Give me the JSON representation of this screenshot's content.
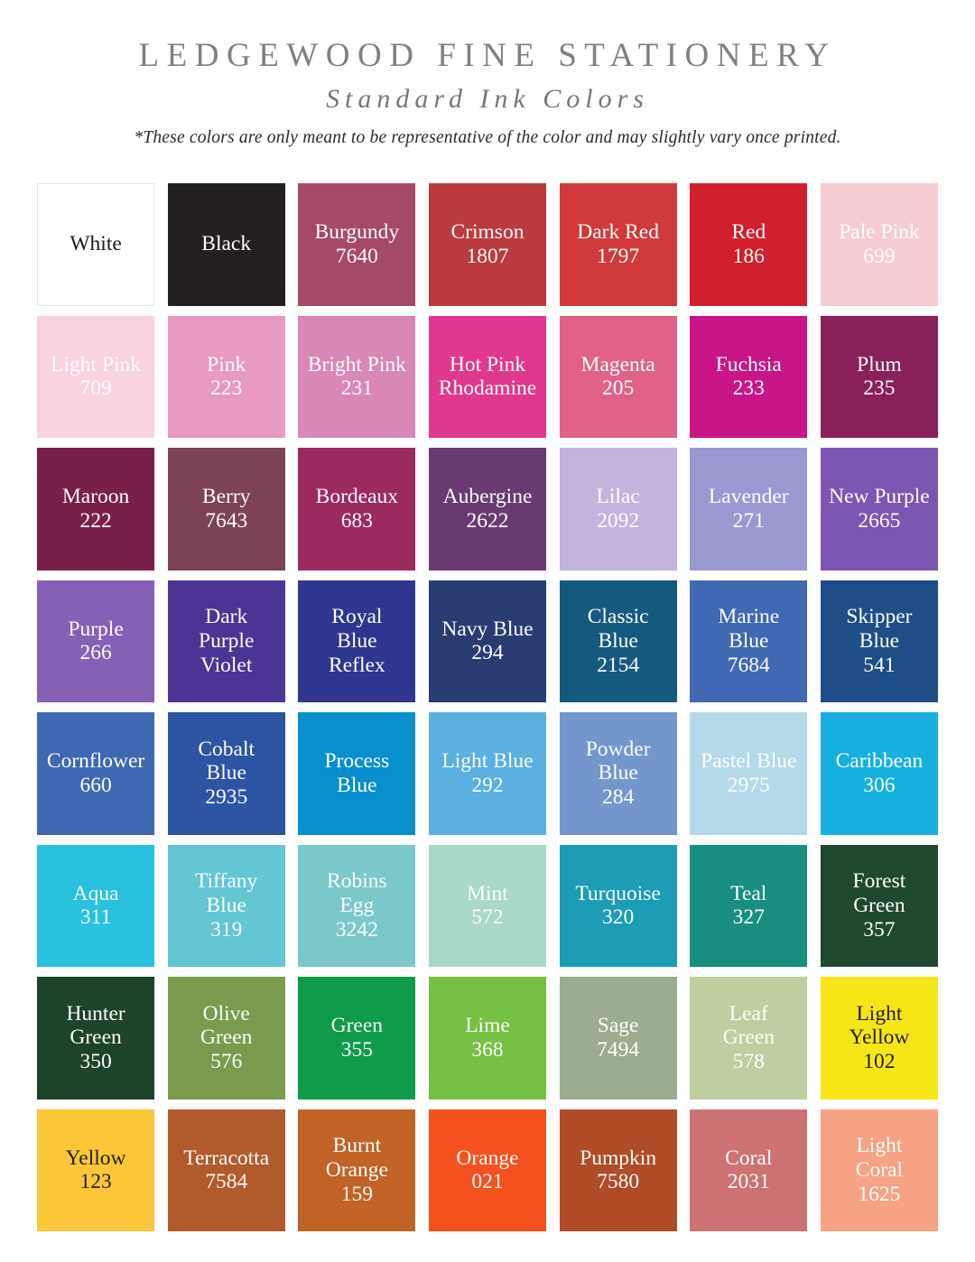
{
  "header": {
    "title": "LEDGEWOOD FINE STATIONERY",
    "subtitle": "Standard Ink Colors",
    "note": "*These colors are only meant to be representative of the color and may slightly vary once printed."
  },
  "grid": {
    "columns": 7,
    "rows": 8,
    "swatches": [
      {
        "name": "White",
        "code": "",
        "color": "#ffffff",
        "text": "#1a1a1a",
        "border": "#e4e4e4"
      },
      {
        "name": "Black",
        "code": "",
        "color": "#231f20",
        "text": "#ffffff"
      },
      {
        "name": "Burgundy",
        "code": "7640",
        "color": "#a54a66",
        "text": "#ffffff"
      },
      {
        "name": "Crimson",
        "code": "1807",
        "color": "#bb3a3e",
        "text": "#ffffff"
      },
      {
        "name": "Dark Red",
        "code": "1797",
        "color": "#d03a3d",
        "text": "#ffffff"
      },
      {
        "name": "Red",
        "code": "186",
        "color": "#d01f2d",
        "text": "#ffffff"
      },
      {
        "name": "Pale Pink",
        "code": "699",
        "color": "#f6ccd3",
        "text": "#ffffff"
      },
      {
        "name": "Light Pink",
        "code": "709",
        "color": "#f9d3de",
        "text": "#ffffff"
      },
      {
        "name": "Pink",
        "code": "223",
        "color": "#e899c1",
        "text": "#ffffff"
      },
      {
        "name": "Bright Pink",
        "code": "231",
        "color": "#d987b6",
        "text": "#ffffff"
      },
      {
        "name": "Hot Pink\nRhodamine",
        "code": "",
        "color": "#e0388e",
        "text": "#ffffff"
      },
      {
        "name": "Magenta",
        "code": "205",
        "color": "#e06287",
        "text": "#ffffff"
      },
      {
        "name": "Fuchsia",
        "code": "233",
        "color": "#c81588",
        "text": "#ffffff"
      },
      {
        "name": "Plum",
        "code": "235",
        "color": "#8a2059",
        "text": "#ffffff"
      },
      {
        "name": "Maroon",
        "code": "222",
        "color": "#78204a",
        "text": "#ffffff"
      },
      {
        "name": "Berry",
        "code": "7643",
        "color": "#7d4355",
        "text": "#ffffff"
      },
      {
        "name": "Bordeaux",
        "code": "683",
        "color": "#9b2a61",
        "text": "#ffffff"
      },
      {
        "name": "Aubergine",
        "code": "2622",
        "color": "#693a71",
        "text": "#ffffff"
      },
      {
        "name": "Lilac",
        "code": "2092",
        "color": "#c4b3dc",
        "text": "#ffffff"
      },
      {
        "name": "Lavender",
        "code": "271",
        "color": "#9a98d1",
        "text": "#ffffff"
      },
      {
        "name": "New Purple",
        "code": "2665",
        "color": "#7d55b2",
        "text": "#ffffff"
      },
      {
        "name": "Purple",
        "code": "266",
        "color": "#8660b4",
        "text": "#ffffff"
      },
      {
        "name": "Dark\nPurple\nViolet",
        "code": "",
        "color": "#4b3494",
        "text": "#ffffff"
      },
      {
        "name": "Royal\nBlue\nReflex",
        "code": "",
        "color": "#2f368f",
        "text": "#ffffff"
      },
      {
        "name": "Navy Blue",
        "code": "294",
        "color": "#283c72",
        "text": "#ffffff"
      },
      {
        "name": "Classic\nBlue",
        "code": "2154",
        "color": "#16597e",
        "text": "#ffffff"
      },
      {
        "name": "Marine\nBlue",
        "code": "7684",
        "color": "#4068b3",
        "text": "#ffffff"
      },
      {
        "name": "Skipper\nBlue",
        "code": "541",
        "color": "#1e4d87",
        "text": "#ffffff"
      },
      {
        "name": "Cornflower",
        "code": "660",
        "color": "#3f68b2",
        "text": "#ffffff"
      },
      {
        "name": "Cobalt\nBlue",
        "code": "2935",
        "color": "#2d53a3",
        "text": "#ffffff"
      },
      {
        "name": "Process\nBlue",
        "code": "",
        "color": "#0a8fce",
        "text": "#ffffff"
      },
      {
        "name": "Light Blue",
        "code": "292",
        "color": "#5bafe1",
        "text": "#ffffff"
      },
      {
        "name": "Powder\nBlue",
        "code": "284",
        "color": "#7396cc",
        "text": "#ffffff"
      },
      {
        "name": "Pastel Blue",
        "code": "2975",
        "color": "#b4d9e8",
        "text": "#ffffff"
      },
      {
        "name": "Caribbean",
        "code": "306",
        "color": "#17b0de",
        "text": "#ffffff"
      },
      {
        "name": "Aqua",
        "code": "311",
        "color": "#29c1dd",
        "text": "#ffffff"
      },
      {
        "name": "Tiffany\nBlue",
        "code": "319",
        "color": "#64c5d3",
        "text": "#ffffff"
      },
      {
        "name": "Robins\nEgg",
        "code": "3242",
        "color": "#7bc8cb",
        "text": "#ffffff"
      },
      {
        "name": "Mint",
        "code": "572",
        "color": "#a8d8c6",
        "text": "#ffffff"
      },
      {
        "name": "Turquoise",
        "code": "320",
        "color": "#1d9cb5",
        "text": "#ffffff"
      },
      {
        "name": "Teal",
        "code": "327",
        "color": "#198d80",
        "text": "#ffffff"
      },
      {
        "name": "Forest\nGreen",
        "code": "357",
        "color": "#1f492d",
        "text": "#ffffff"
      },
      {
        "name": "Hunter\nGreen",
        "code": "350",
        "color": "#1d4328",
        "text": "#ffffff"
      },
      {
        "name": "Olive\nGreen",
        "code": "576",
        "color": "#7a9a4d",
        "text": "#ffffff"
      },
      {
        "name": "Green",
        "code": "355",
        "color": "#0f9b49",
        "text": "#ffffff"
      },
      {
        "name": "Lime",
        "code": "368",
        "color": "#76c043",
        "text": "#ffffff"
      },
      {
        "name": "Sage",
        "code": "7494",
        "color": "#9bac90",
        "text": "#ffffff"
      },
      {
        "name": "Leaf\nGreen",
        "code": "578",
        "color": "#bdcfa0",
        "text": "#ffffff"
      },
      {
        "name": "Light\nYellow",
        "code": "102",
        "color": "#f6e617",
        "text": "#231f20"
      },
      {
        "name": "Yellow",
        "code": "123",
        "color": "#fbc637",
        "text": "#231f20"
      },
      {
        "name": "Terracotta",
        "code": "7584",
        "color": "#b15b2d",
        "text": "#ffffff"
      },
      {
        "name": "Burnt\nOrange",
        "code": "159",
        "color": "#c16227",
        "text": "#ffffff"
      },
      {
        "name": "Orange",
        "code": "021",
        "color": "#f5511f",
        "text": "#ffffff"
      },
      {
        "name": "Pumpkin",
        "code": "7580",
        "color": "#b04b27",
        "text": "#ffffff"
      },
      {
        "name": "Coral",
        "code": "2031",
        "color": "#cd7273",
        "text": "#ffffff"
      },
      {
        "name": "Light\nCoral",
        "code": "1625",
        "color": "#f6a284",
        "text": "#ffffff"
      }
    ]
  }
}
